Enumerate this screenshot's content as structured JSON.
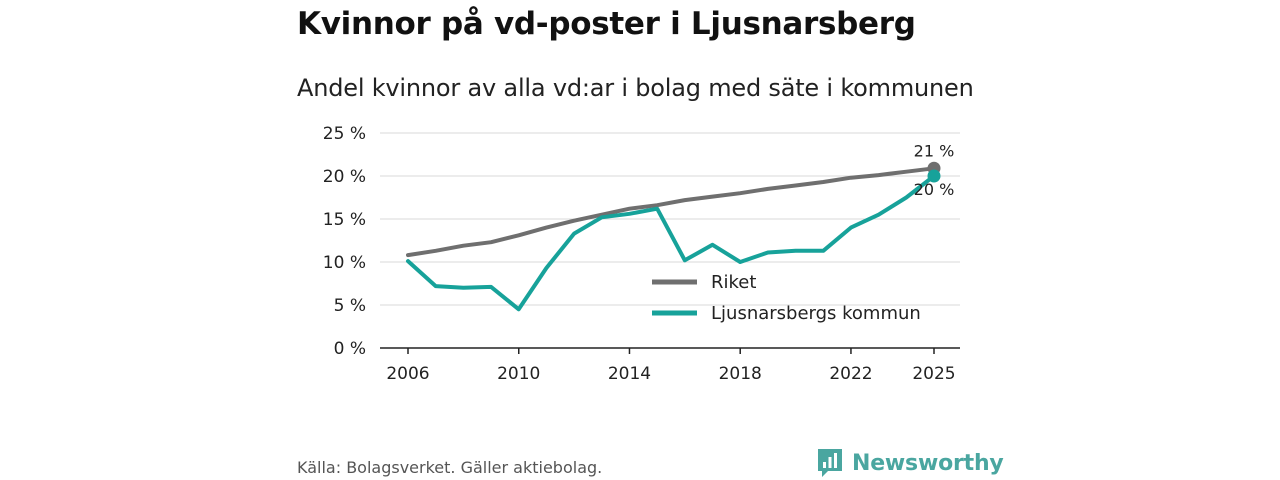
{
  "header": {
    "title": "Kvinnor på vd-poster i Ljusnarsberg",
    "subtitle": "Andel kvinnor av alla vd:ar i bolag med säte i kommunen"
  },
  "footer": {
    "source": "Källa: Bolagsverket. Gäller aktiebolag.",
    "brand": "Newsworthy"
  },
  "chart_data": {
    "type": "line",
    "title": "Kvinnor på vd-poster i Ljusnarsberg",
    "subtitle": "Andel kvinnor av alla vd:ar i bolag med säte i kommunen",
    "xlabel": "",
    "ylabel": "",
    "xlim": [
      2006,
      2025
    ],
    "ylim": [
      0,
      25
    ],
    "x_ticks": [
      {
        "value": 2006,
        "label": "2006"
      },
      {
        "value": 2010,
        "label": "2010"
      },
      {
        "value": 2014,
        "label": "2014"
      },
      {
        "value": 2018,
        "label": "2018"
      },
      {
        "value": 2022,
        "label": "2022"
      },
      {
        "value": 2025,
        "label": "2025"
      }
    ],
    "y_ticks": [
      {
        "value": 0,
        "label": "0 %"
      },
      {
        "value": 5,
        "label": "5 %"
      },
      {
        "value": 10,
        "label": "10 %"
      },
      {
        "value": 15,
        "label": "15 %"
      },
      {
        "value": 20,
        "label": "20 %"
      },
      {
        "value": 25,
        "label": "25 %"
      }
    ],
    "grid": true,
    "legend_position": "bottom-right",
    "x": [
      2006,
      2007,
      2008,
      2009,
      2010,
      2011,
      2012,
      2013,
      2014,
      2015,
      2016,
      2017,
      2018,
      2019,
      2020,
      2021,
      2022,
      2023,
      2024,
      2025
    ],
    "series": [
      {
        "name": "Riket",
        "color": "#6f6f6f",
        "values": [
          10.8,
          11.3,
          11.9,
          12.3,
          13.1,
          14.0,
          14.8,
          15.5,
          16.2,
          16.6,
          17.2,
          17.6,
          18.0,
          18.5,
          18.9,
          19.3,
          19.8,
          20.1,
          20.5,
          20.9
        ],
        "end_label": "21 %"
      },
      {
        "name": "Ljusnarsbergs kommun",
        "color": "#17a29a",
        "values": [
          10.1,
          7.2,
          7.0,
          7.1,
          4.5,
          9.3,
          13.3,
          15.2,
          15.6,
          16.2,
          10.2,
          12.0,
          10.0,
          11.1,
          11.3,
          11.3,
          14.0,
          15.5,
          17.5,
          20.0
        ],
        "end_label": "20 %"
      }
    ]
  }
}
